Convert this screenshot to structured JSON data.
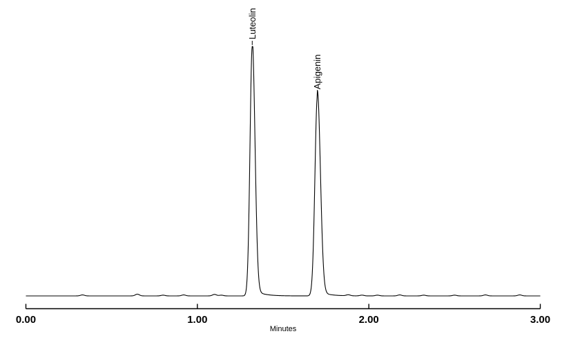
{
  "chart_data": {
    "type": "line",
    "chart_kind": "hplc-chromatogram",
    "title": "",
    "xlabel": "Minutes",
    "ylabel": "",
    "xlim": [
      0.0,
      3.0
    ],
    "grid": "off",
    "legend_position": "none",
    "y_axis_visible": false,
    "x_ticks": [
      {
        "value": 0.0,
        "label": "0.00"
      },
      {
        "value": 1.0,
        "label": "1.00"
      },
      {
        "value": 2.0,
        "label": "2.00"
      },
      {
        "value": 3.0,
        "label": "3.00"
      }
    ],
    "peaks": [
      {
        "label": "Luteolin",
        "retention_time_min": 1.32,
        "relative_height": 1.0,
        "base_width_min": 0.1
      },
      {
        "label": "Apigenin",
        "retention_time_min": 1.7,
        "relative_height": 0.8,
        "base_width_min": 0.11
      }
    ],
    "baseline_noise_bumps": [
      {
        "t": 0.33,
        "a": 0.004
      },
      {
        "t": 0.65,
        "a": 0.007
      },
      {
        "t": 0.8,
        "a": 0.003
      },
      {
        "t": 0.92,
        "a": 0.004
      },
      {
        "t": 1.1,
        "a": 0.006
      },
      {
        "t": 1.14,
        "a": 0.003
      },
      {
        "t": 1.88,
        "a": 0.004
      },
      {
        "t": 1.96,
        "a": 0.003
      },
      {
        "t": 2.05,
        "a": 0.003
      },
      {
        "t": 2.18,
        "a": 0.004
      },
      {
        "t": 2.32,
        "a": 0.003
      },
      {
        "t": 2.5,
        "a": 0.003
      },
      {
        "t": 2.68,
        "a": 0.004
      },
      {
        "t": 2.88,
        "a": 0.004
      }
    ],
    "line_color": "#000000",
    "background_color": "#ffffff"
  }
}
